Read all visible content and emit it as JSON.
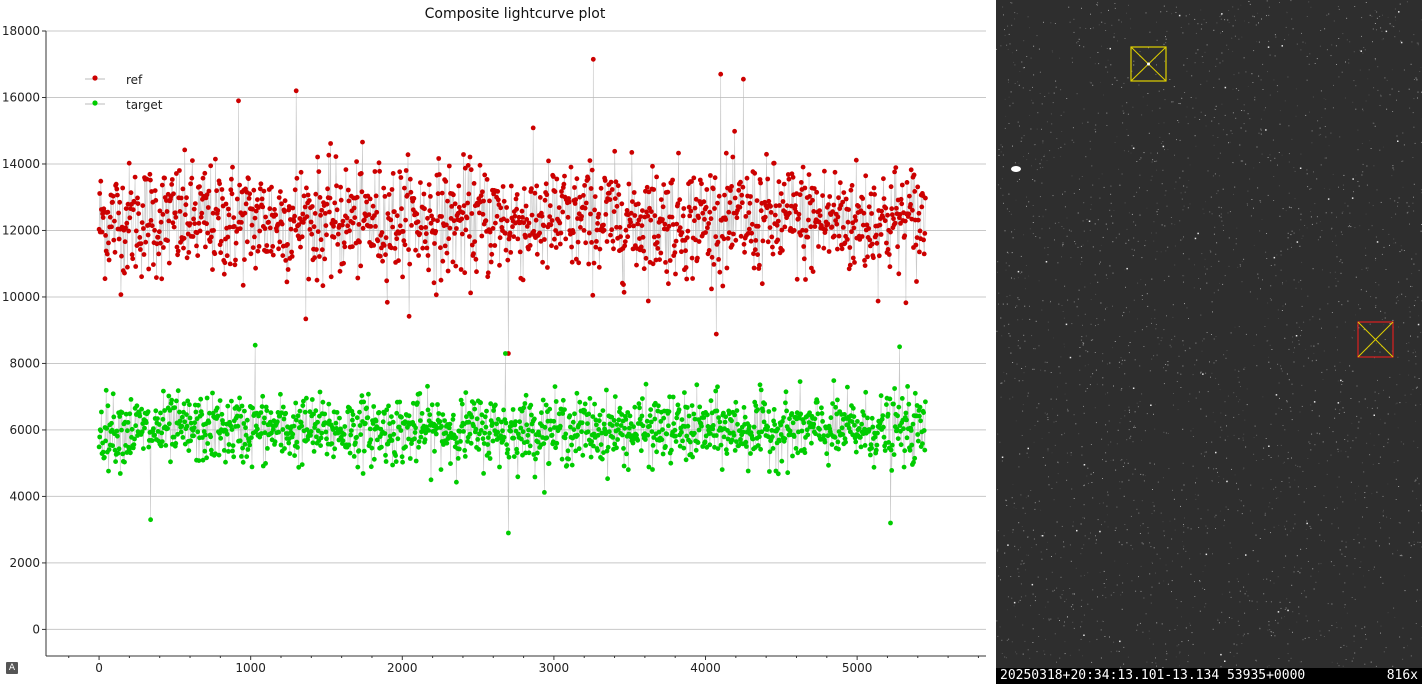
{
  "chart_data": {
    "type": "scatter",
    "title": "Composite lightcurve plot",
    "xlabel": "",
    "ylabel": "",
    "xlim": [
      -350,
      5850
    ],
    "ylim": [
      -800,
      18000
    ],
    "x_ticks": [
      0,
      1000,
      2000,
      3000,
      4000,
      5000
    ],
    "y_ticks": [
      0,
      2000,
      4000,
      6000,
      8000,
      10000,
      12000,
      14000,
      16000,
      18000
    ],
    "grid": "horizontal",
    "legend_position": "top-left",
    "series": [
      {
        "name": "ref",
        "color": "#cc0000",
        "x_range": [
          0,
          5450
        ],
        "point_count": 1400,
        "mean": 12300,
        "spread": 1700,
        "min": 8300,
        "max": 17150,
        "notable_points": [
          [
            3260,
            17150
          ],
          [
            4100,
            16700
          ],
          [
            4250,
            16550
          ],
          [
            1300,
            16200
          ],
          [
            920,
            15900
          ],
          [
            2700,
            8300
          ]
        ]
      },
      {
        "name": "target",
        "color": "#00cc00",
        "x_range": [
          0,
          5450
        ],
        "point_count": 1400,
        "mean": 6000,
        "spread": 1000,
        "min": 2900,
        "max": 8550,
        "notable_points": [
          [
            1030,
            8550
          ],
          [
            5280,
            8500
          ],
          [
            2680,
            8300
          ],
          [
            2700,
            2900
          ],
          [
            340,
            3300
          ],
          [
            5220,
            3200
          ]
        ]
      }
    ]
  },
  "plot": {
    "autoscale_label": "A"
  },
  "image_view": {
    "status_text": "20250318+20:34:13.101-13.134 53935+0000",
    "zoom_text": "816x",
    "ref_marker_color": "#e0d000",
    "target_marker_color": "#dd2020",
    "target_cross_color": "#e0d000"
  }
}
